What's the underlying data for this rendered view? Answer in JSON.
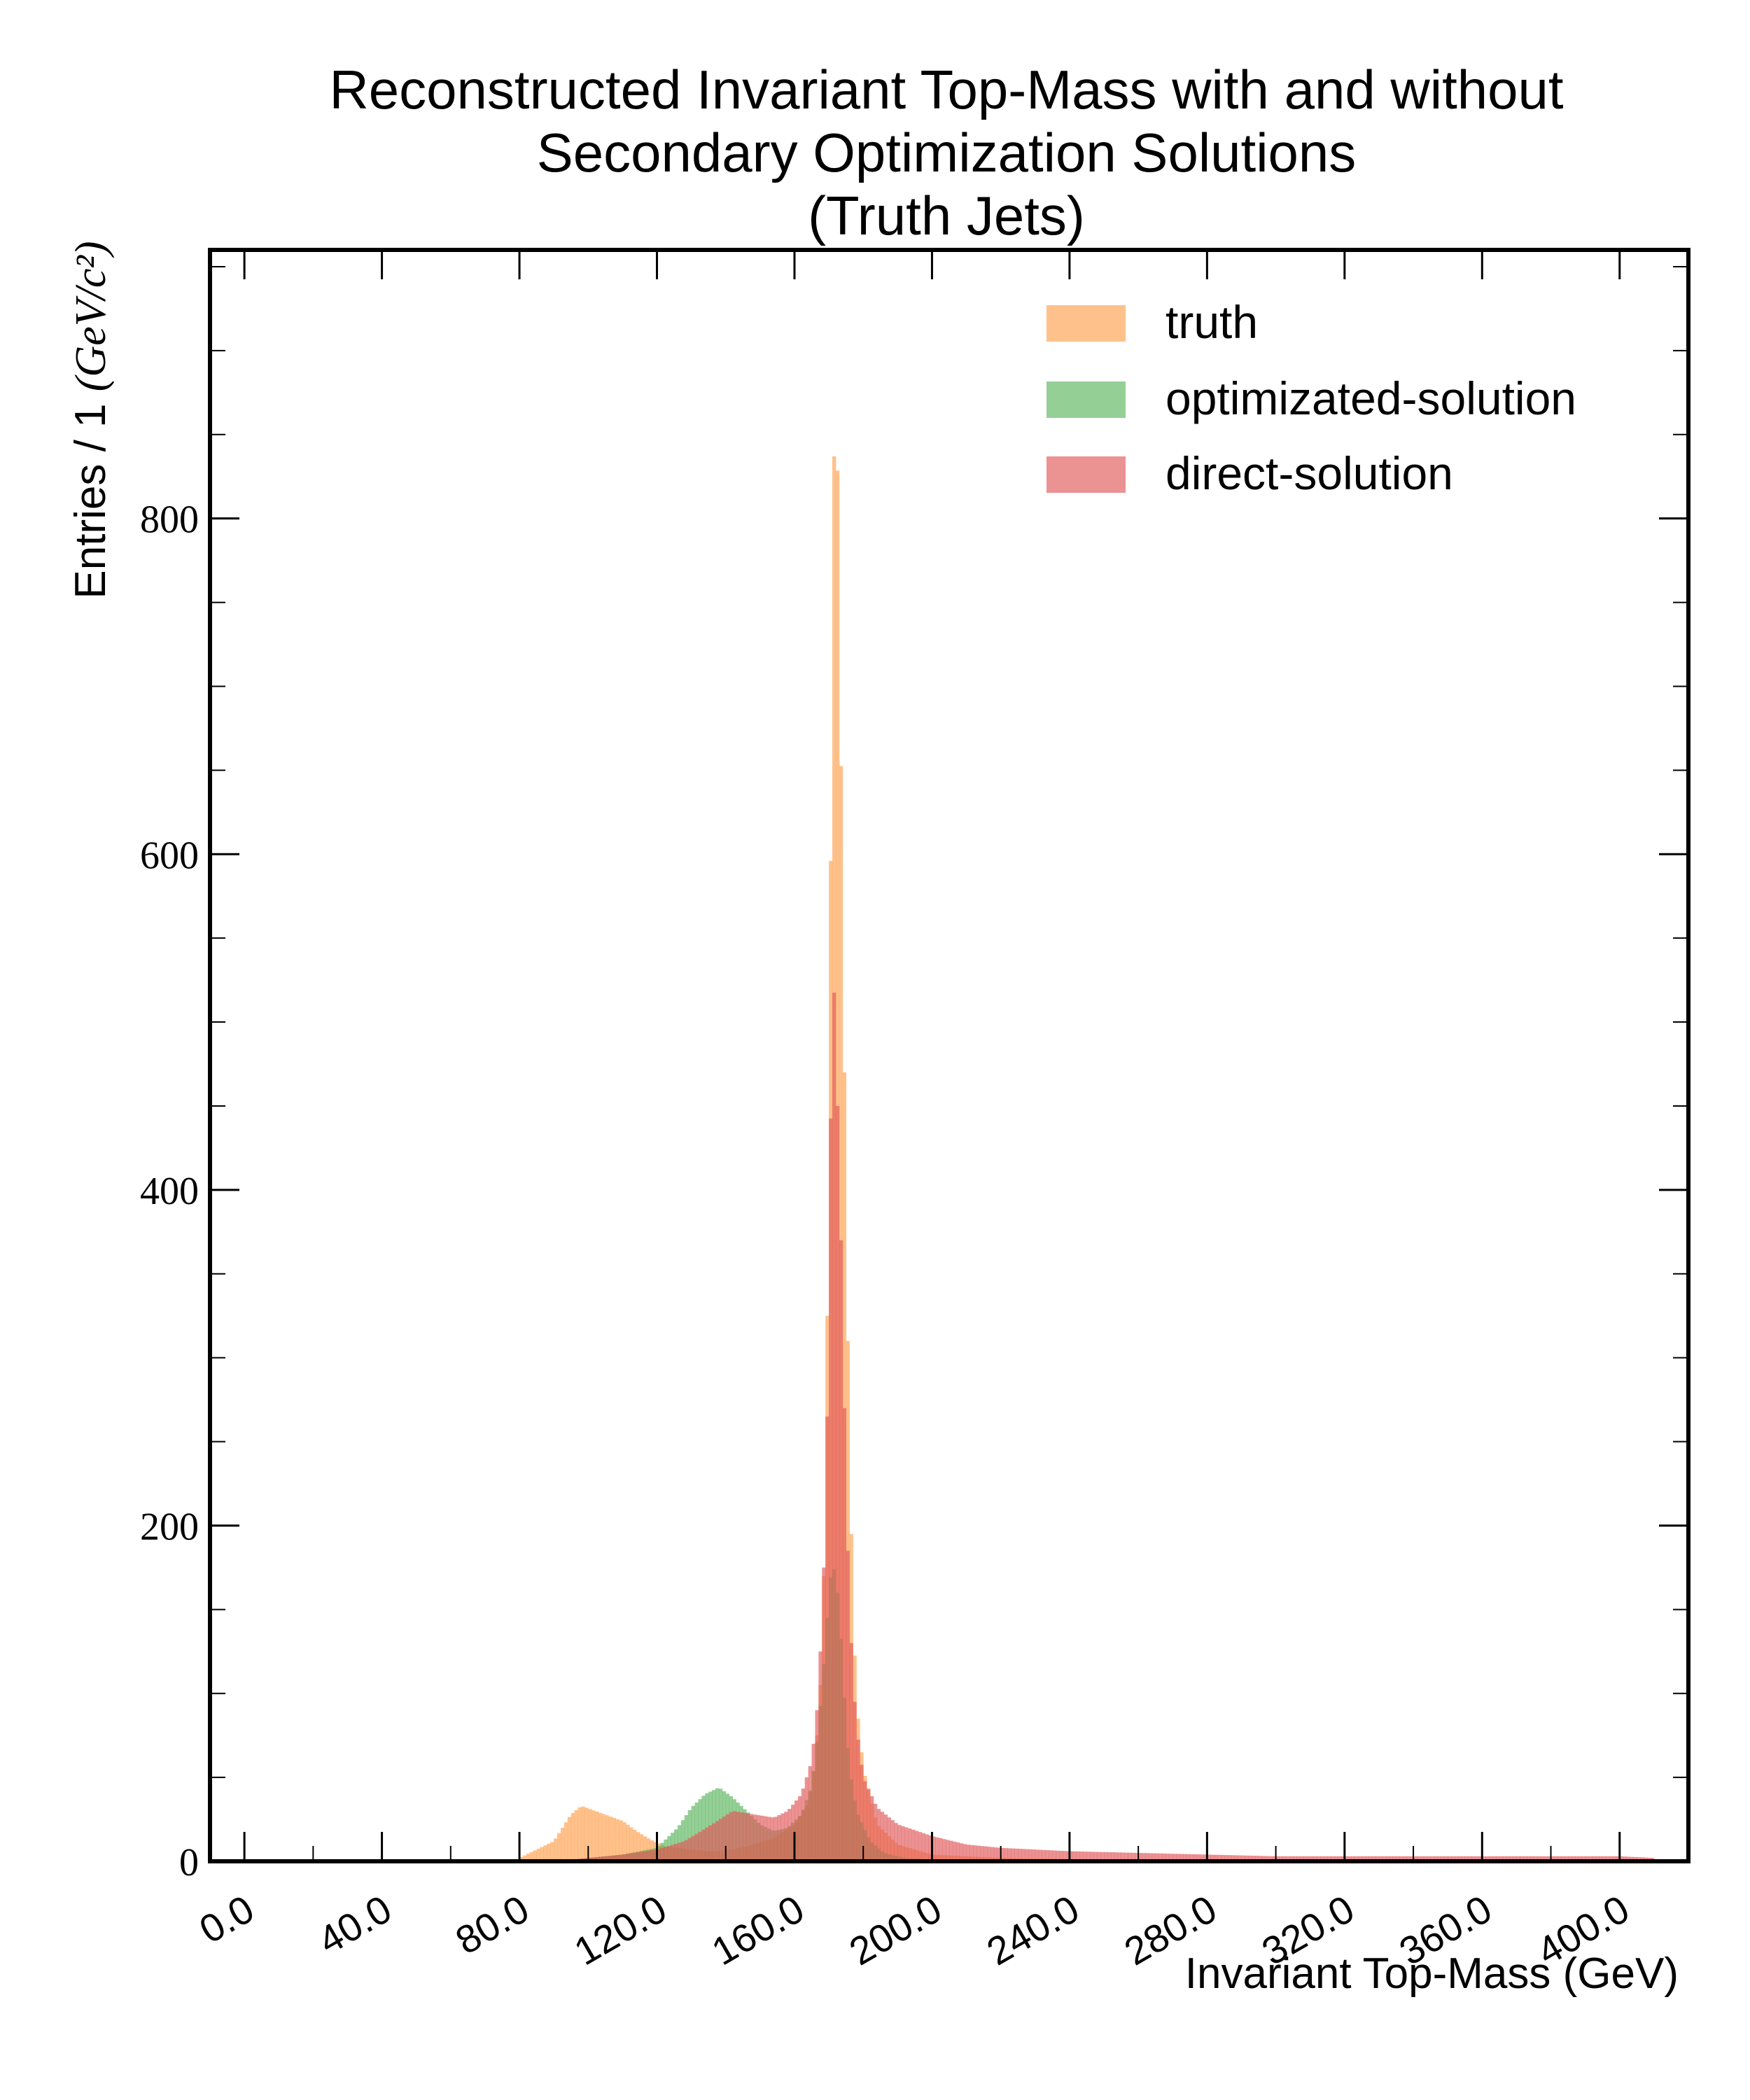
{
  "chart_data": {
    "type": "bar",
    "title_lines": [
      "Reconstructed Invariant Top-Mass with and without",
      "Secondary Optimization Solutions",
      "(Truth Jets)"
    ],
    "xlabel": "Invariant Top-Mass (GeV)",
    "ylabel": "Entries / 1 ",
    "ylabel_unit": "(GeV/c²)",
    "xlim": [
      -10,
      420
    ],
    "ylim": [
      0,
      960
    ],
    "x_ticks": [
      "0.0",
      "40.0",
      "80.0",
      "120.0",
      "160.0",
      "200.0",
      "240.0",
      "280.0",
      "320.0",
      "360.0",
      "400.0"
    ],
    "x_tick_values": [
      0,
      40,
      80,
      120,
      160,
      200,
      240,
      280,
      320,
      360,
      400
    ],
    "y_ticks": [
      "0",
      "200",
      "400",
      "600",
      "800"
    ],
    "y_tick_values": [
      0,
      200,
      400,
      600,
      800
    ],
    "legend_position": "top-right",
    "bin_width": 1,
    "series": [
      {
        "name": "truth",
        "color": "#FFA04D",
        "opacity": 0.65,
        "points": [
          [
            80,
            2
          ],
          [
            90,
            12
          ],
          [
            95,
            28
          ],
          [
            98,
            33
          ],
          [
            102,
            30
          ],
          [
            106,
            27
          ],
          [
            110,
            24
          ],
          [
            114,
            18
          ],
          [
            118,
            13
          ],
          [
            122,
            9
          ],
          [
            126,
            8
          ],
          [
            130,
            7
          ],
          [
            136,
            6
          ],
          [
            142,
            7
          ],
          [
            148,
            10
          ],
          [
            154,
            14
          ],
          [
            160,
            22
          ],
          [
            164,
            35
          ],
          [
            166,
            60
          ],
          [
            168,
            120
          ],
          [
            169,
            220
          ],
          [
            170,
            430
          ],
          [
            171,
            762
          ],
          [
            172,
            912
          ],
          [
            173,
            745
          ],
          [
            174,
            560
          ],
          [
            175,
            380
          ],
          [
            176,
            240
          ],
          [
            177,
            150
          ],
          [
            178,
            95
          ],
          [
            180,
            55
          ],
          [
            184,
            22
          ],
          [
            190,
            10
          ],
          [
            200,
            4
          ],
          [
            220,
            2
          ],
          [
            250,
            1
          ],
          [
            300,
            0
          ]
        ]
      },
      {
        "name": "optimizated-solution",
        "color": "#4CAF50",
        "opacity": 0.6,
        "points": [
          [
            95,
            1
          ],
          [
            110,
            4
          ],
          [
            120,
            8
          ],
          [
            126,
            20
          ],
          [
            130,
            32
          ],
          [
            134,
            40
          ],
          [
            138,
            44
          ],
          [
            142,
            38
          ],
          [
            146,
            30
          ],
          [
            150,
            22
          ],
          [
            154,
            18
          ],
          [
            158,
            20
          ],
          [
            162,
            28
          ],
          [
            165,
            45
          ],
          [
            167,
            80
          ],
          [
            169,
            130
          ],
          [
            170,
            160
          ],
          [
            171,
            178
          ],
          [
            172,
            170
          ],
          [
            173,
            150
          ],
          [
            174,
            115
          ],
          [
            175,
            80
          ],
          [
            176,
            55
          ],
          [
            178,
            30
          ],
          [
            182,
            12
          ],
          [
            186,
            5
          ],
          [
            192,
            2
          ],
          [
            200,
            1
          ],
          [
            220,
            0
          ]
        ]
      },
      {
        "name": "direct-solution",
        "color": "#E15759",
        "opacity": 0.65,
        "points": [
          [
            95,
            1
          ],
          [
            110,
            4
          ],
          [
            120,
            7
          ],
          [
            128,
            12
          ],
          [
            136,
            22
          ],
          [
            142,
            30
          ],
          [
            148,
            28
          ],
          [
            154,
            26
          ],
          [
            158,
            30
          ],
          [
            162,
            40
          ],
          [
            165,
            60
          ],
          [
            167,
            100
          ],
          [
            169,
            200
          ],
          [
            170,
            330
          ],
          [
            171,
            555
          ],
          [
            172,
            480
          ],
          [
            173,
            420
          ],
          [
            174,
            320
          ],
          [
            175,
            220
          ],
          [
            176,
            150
          ],
          [
            177,
            110
          ],
          [
            178,
            80
          ],
          [
            180,
            50
          ],
          [
            184,
            32
          ],
          [
            190,
            22
          ],
          [
            200,
            15
          ],
          [
            210,
            10
          ],
          [
            220,
            8
          ],
          [
            240,
            6
          ],
          [
            260,
            5
          ],
          [
            280,
            4
          ],
          [
            300,
            3
          ],
          [
            320,
            3
          ],
          [
            340,
            3
          ],
          [
            360,
            3
          ],
          [
            380,
            3
          ],
          [
            400,
            3
          ],
          [
            410,
            2
          ]
        ]
      }
    ]
  }
}
